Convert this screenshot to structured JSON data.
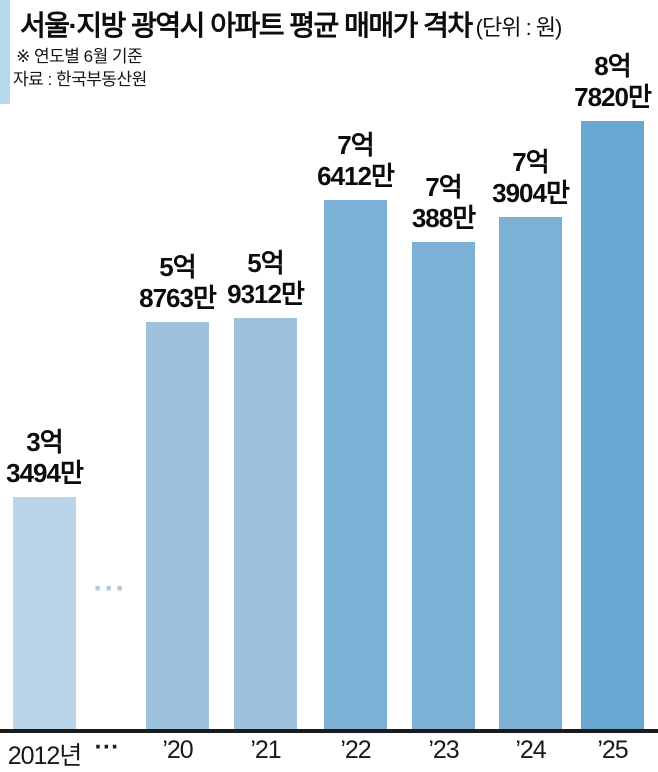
{
  "header": {
    "title": "서울·지방 광역시 아파트 평균 매매가 격차",
    "unit_label": "(단위 : 원)",
    "basis_note": "※ 연도별 6월 기준",
    "source_note": "자료 : 한국부동산원",
    "accent_color": "#b5d8ea"
  },
  "chart_data": {
    "type": "bar",
    "title": "서울·지방 광역시 아파트 평균 매매가 격차",
    "unit": "원",
    "basis_note": "※ 연도별 6월 기준",
    "source": "자료 : 한국부동산원",
    "categories": [
      "2012년",
      "’20",
      "’21",
      "’22",
      "’23",
      "’24",
      "’25"
    ],
    "values_man_won": [
      33494,
      58763,
      59312,
      76412,
      70388,
      73904,
      87820
    ],
    "ylim_man_won": [
      0,
      90000
    ],
    "grid": false,
    "legend": false,
    "timeline_gap_after": "2012년",
    "gap_ellipsis": "···",
    "axis_gap_label": "···",
    "axis_line_color": "#1b1b1b",
    "bars": [
      {
        "category": "2012년",
        "value_man_won": 33494,
        "label_line1": "3억",
        "label_line2": "3494만",
        "color": "#bcd4e8"
      },
      {
        "category": "’20",
        "value_man_won": 58763,
        "label_line1": "5억",
        "label_line2": "8763만",
        "color": "#9cc2dd"
      },
      {
        "category": "’21",
        "value_man_won": 59312,
        "label_line1": "5억",
        "label_line2": "9312만",
        "color": "#9cc2dd"
      },
      {
        "category": "’22",
        "value_man_won": 76412,
        "label_line1": "7억",
        "label_line2": "6412만",
        "color": "#7db0d6"
      },
      {
        "category": "’23",
        "value_man_won": 70388,
        "label_line1": "7억",
        "label_line2": "388만",
        "color": "#7db0d6"
      },
      {
        "category": "’24",
        "value_man_won": 73904,
        "label_line1": "7억",
        "label_line2": "3904만",
        "color": "#7db0d6"
      },
      {
        "category": "’25",
        "value_man_won": 87820,
        "label_line1": "8억",
        "label_line2": "7820만",
        "color": "#68a8d2"
      }
    ]
  }
}
